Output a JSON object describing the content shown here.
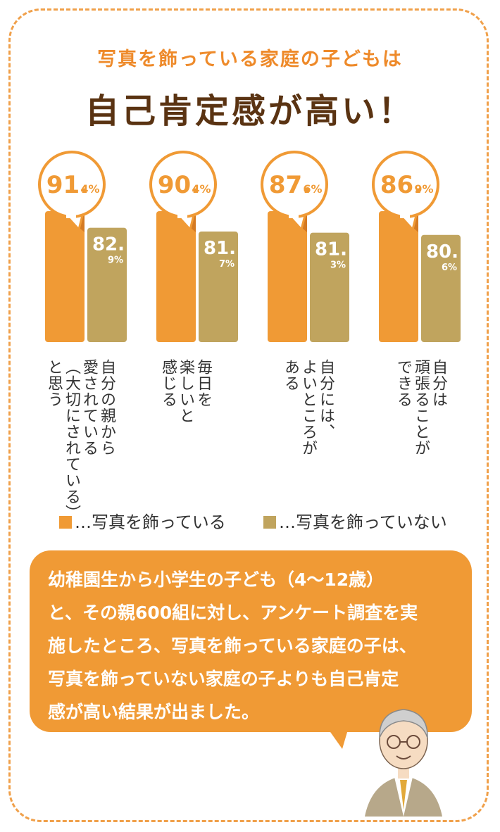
{
  "header": {
    "subtitle": "写真を飾っている家庭の子どもは",
    "title": "自己肯定感が高い！"
  },
  "chart_data": {
    "type": "bar",
    "categories": [
      "自分の親から愛されている（大切にされている）と思う",
      "毎日を楽しいと感じる",
      "自分には、よいところがある",
      "自分は頑張ることができる"
    ],
    "series": [
      {
        "name": "写真を飾っている",
        "values": [
          91.4,
          90.4,
          87.6,
          86.9
        ],
        "labels": [
          "91.4%",
          "90.4%",
          "87.6%",
          "86.9%"
        ],
        "color": "#f09a35"
      },
      {
        "name": "写真を飾っていない",
        "values": [
          82.9,
          81.7,
          81.3,
          80.6
        ],
        "labels": [
          "82.9%",
          "81.7%",
          "81.3%",
          "80.6%"
        ],
        "color": "#c0a45e"
      }
    ],
    "ylim": [
      0,
      100
    ]
  },
  "category_labels": [
    "自分の親から\n愛されている\n（大切にされている）\nと思う",
    "毎日を\n楽しいと\n感じる",
    "自分には、\nよいところが\nある",
    "自分は\n頑張ることが\nできる"
  ],
  "legend": {
    "with_photo": "…写真を飾っている",
    "without_photo": "…写真を飾っていない"
  },
  "note": {
    "lines": [
      "幼稚園生から小学生の子ども（4～12歳）",
      "と、その親600組に対し、アンケート調査を実",
      "施したところ、写真を飾っている家庭の子は、",
      "写真を飾っていない家庭の子よりも自己肯定",
      "感が高い結果が出ました。"
    ]
  },
  "colors": {
    "orange": "#f09a35",
    "gold": "#c0a45e",
    "border": "#f0a04a",
    "title": "#5a3312"
  }
}
